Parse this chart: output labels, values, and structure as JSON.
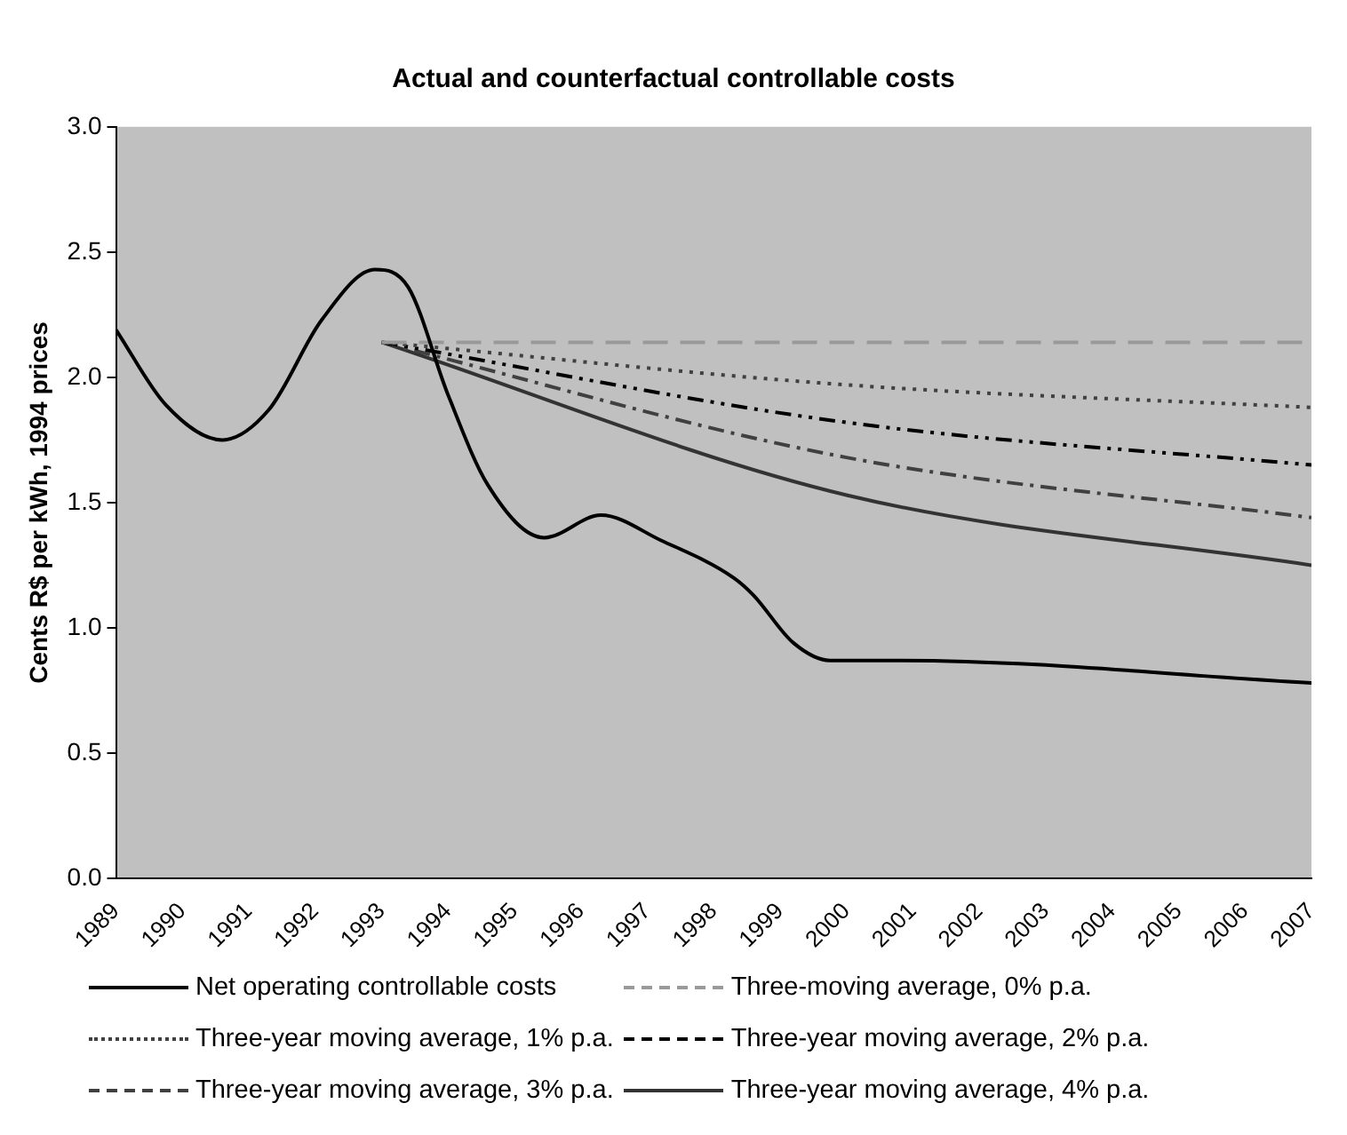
{
  "chart_data": {
    "type": "line",
    "title": "Actual and counterfactual controllable costs",
    "ylabel": "Cents R$ per kWh, 1994 prices",
    "xlim": [
      1989,
      2007
    ],
    "xticks": [
      1989,
      1990,
      1991,
      1992,
      1993,
      1994,
      1995,
      1996,
      1997,
      1998,
      1999,
      2000,
      2001,
      2002,
      2003,
      2004,
      2005,
      2006,
      2007
    ],
    "ylim": [
      0,
      3
    ],
    "yticks": [
      {
        "value": 0,
        "label": "0.0"
      },
      {
        "value": 0.5,
        "label": "0.5"
      },
      {
        "value": 1,
        "label": "1.0"
      },
      {
        "value": 1.5,
        "label": "1.5"
      },
      {
        "value": 2,
        "label": "2.0"
      },
      {
        "value": 2.5,
        "label": "2.5"
      },
      {
        "value": 3,
        "label": "3.0"
      }
    ],
    "grid": false,
    "legend": "bottom",
    "marker": "none",
    "series": [
      {
        "name": "Net operating controllable costs",
        "color": "#000000",
        "line_style": "solid",
        "x": [
          1989,
          1989.75,
          1990.6,
          1991.3,
          1992.1,
          1992.9,
          1993.4,
          1994,
          1994.6,
          1995.45,
          1996.3,
          1997.2,
          1998.3,
          1998.6,
          1999.2,
          1999.75,
          2000.8,
          2007
        ],
        "values": [
          2.19,
          1.89,
          1.75,
          1.87,
          2.23,
          2.43,
          2.36,
          1.93,
          1.57,
          1.36,
          1.45,
          1.35,
          1.2,
          1.13,
          0.94,
          0.87,
          0.87,
          0.78
        ]
      },
      {
        "name": "Three-moving average, 0% p.a.",
        "color": "#999999",
        "line_style": "dashed",
        "x": [
          1993,
          2007
        ],
        "values": [
          2.14,
          2.14
        ]
      },
      {
        "name": "Three-year moving average, 1% p.a.",
        "color": "#404040",
        "line_style": "dotted",
        "x": [
          1993,
          2000,
          2007
        ],
        "values": [
          2.14,
          1.97,
          1.88
        ]
      },
      {
        "name": "Three-year moving average, 2% p.a.",
        "color": "#000000",
        "line_style": "dashdotdot",
        "x": [
          1993,
          2000,
          2007
        ],
        "values": [
          2.14,
          1.82,
          1.65
        ]
      },
      {
        "name": "Three-year moving average, 3% p.a.",
        "color": "#404040",
        "line_style": "dashdot",
        "x": [
          1993,
          2000,
          2007
        ],
        "values": [
          2.14,
          1.68,
          1.44
        ]
      },
      {
        "name": "Three-year moving average, 4% p.a.",
        "color": "#333333",
        "line_style": "solid",
        "x": [
          1993,
          2000,
          2007
        ],
        "values": [
          2.14,
          1.53,
          1.25
        ]
      }
    ]
  }
}
